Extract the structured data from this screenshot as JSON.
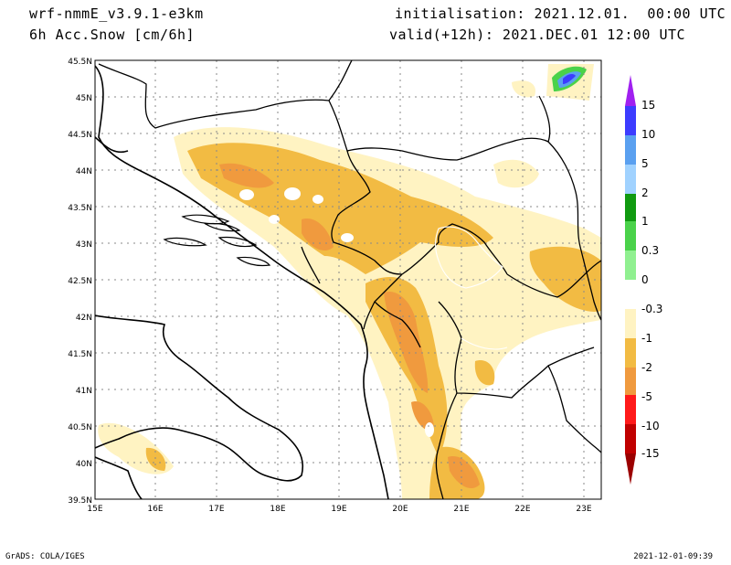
{
  "header": {
    "model": "wrf-nmmE_v3.9.1-e3km",
    "field": "6h Acc.Snow [cm/6h]",
    "init": "initialisation: 2021.12.01.  00:00 UTC",
    "valid": "valid(+12h): 2021.DEC.01 12:00 UTC"
  },
  "footer": {
    "credit": "GrADS: COLA/IGES",
    "timestamp": "2021-12-01-09:39"
  },
  "map": {
    "lon_ticks": [
      "15E",
      "16E",
      "17E",
      "18E",
      "19E",
      "20E",
      "21E",
      "22E",
      "23E"
    ],
    "lat_ticks": [
      "45.5N",
      "45N",
      "44.5N",
      "44N",
      "43.5N",
      "43N",
      "42.5N",
      "42N",
      "41.5N",
      "41N",
      "40.5N",
      "40N",
      "39.5N"
    ],
    "extent": {
      "lon": [
        15,
        23.3
      ],
      "lat": [
        39.5,
        45.5
      ]
    },
    "colors": {
      "light": "#fff3c2",
      "mid": "#f2bb43",
      "strong": "#f09a3e",
      "white": "#ffffff"
    }
  },
  "legend": {
    "labels": [
      "15",
      "10",
      "5",
      "2",
      "1",
      "0.3",
      "0",
      "-0.3",
      "-1",
      "-2",
      "-5",
      "-10",
      "-15"
    ],
    "colors": [
      "#a020f0",
      "#3c3cff",
      "#5aa0f0",
      "#a0d2ff",
      "#109a10",
      "#4ad24a",
      "#90f090",
      "#ffffff",
      "#fff3c2",
      "#f2bb43",
      "#f09a3e",
      "#ff1a1a",
      "#c00000",
      "#9b0000"
    ]
  }
}
